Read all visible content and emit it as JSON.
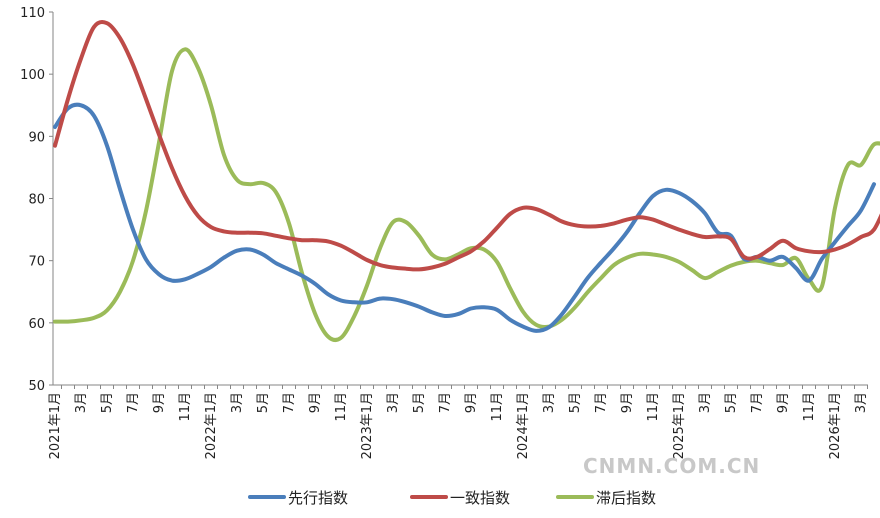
{
  "chart_data": {
    "type": "line",
    "title": "",
    "xlabel": "",
    "ylabel": "",
    "ylim": [
      50,
      110
    ],
    "yticks": [
      50,
      60,
      70,
      80,
      90,
      100,
      110
    ],
    "grid": false,
    "legend_position": "bottom",
    "x_tick_labels": [
      "2021年1月",
      "3月",
      "5月",
      "7月",
      "9月",
      "11月",
      "2022年1月",
      "3月",
      "5月",
      "7月",
      "9月",
      "11月",
      "2023年1月",
      "3月",
      "5月",
      "7月",
      "9月",
      "11月",
      "2024年1月",
      "3月",
      "5月",
      "7月",
      "9月",
      "11月",
      "2025年1月",
      "3月",
      "5月",
      "7月",
      "9月",
      "11月",
      "2026年1月",
      "3月"
    ],
    "series": [
      {
        "name": "先行指数",
        "color": "#4a7ebb",
        "values": [
          91.5,
          94.5,
          95.0,
          93.3,
          88.5,
          81.5,
          75.0,
          70.2,
          67.8,
          66.8,
          67.0,
          67.9,
          69.0,
          70.5,
          71.6,
          71.8,
          71.0,
          69.6,
          68.6,
          67.6,
          66.3,
          64.6,
          63.6,
          63.3,
          63.3,
          63.9,
          63.8,
          63.3,
          62.6,
          61.7,
          61.1,
          61.4,
          62.3,
          62.5,
          62.1,
          60.5,
          59.4,
          58.7,
          59.3,
          61.4,
          64.3,
          67.3,
          69.7,
          72.0,
          74.6,
          77.7,
          80.4,
          81.4,
          80.9,
          79.6,
          77.6,
          74.5,
          74.0,
          70.3,
          70.6,
          70.0,
          70.6,
          68.8,
          66.8,
          70.3,
          73.0,
          75.6,
          78.1,
          82.3
        ]
      },
      {
        "name": "一致指数",
        "color": "#be4b48",
        "values": [
          88.5,
          96.0,
          102.5,
          107.6,
          108.2,
          105.8,
          101.5,
          96.0,
          90.3,
          84.9,
          80.4,
          77.2,
          75.4,
          74.7,
          74.5,
          74.5,
          74.4,
          74.0,
          73.6,
          73.3,
          73.3,
          73.1,
          72.4,
          71.3,
          70.1,
          69.3,
          68.9,
          68.7,
          68.6,
          68.9,
          69.5,
          70.5,
          71.5,
          73.1,
          75.3,
          77.5,
          78.5,
          78.3,
          77.4,
          76.3,
          75.7,
          75.5,
          75.6,
          76.0,
          76.6,
          77.0,
          76.6,
          75.8,
          75.0,
          74.3,
          73.8,
          73.9,
          73.5,
          70.6,
          70.6,
          71.9,
          73.2,
          72.0,
          71.5,
          71.4,
          71.8,
          72.6,
          73.8,
          75.0,
          79.4
        ]
      },
      {
        "name": "滞后指数",
        "color": "#9bbb59",
        "values": [
          60.2,
          60.2,
          60.4,
          60.8,
          62.0,
          65.0,
          70.0,
          78.0,
          89.0,
          100.5,
          104.0,
          101.0,
          95.0,
          87.0,
          83.0,
          82.3,
          82.5,
          81.0,
          76.0,
          68.0,
          61.5,
          57.8,
          57.6,
          61.0,
          66.0,
          72.0,
          76.2,
          76.2,
          74.0,
          71.0,
          70.2,
          71.0,
          72.0,
          71.8,
          69.8,
          65.6,
          61.8,
          59.7,
          59.4,
          60.5,
          62.5,
          65.0,
          67.2,
          69.3,
          70.5,
          71.1,
          71.0,
          70.6,
          69.8,
          68.5,
          67.2,
          68.2,
          69.2,
          69.8,
          70.0,
          69.6,
          69.3,
          70.4,
          67.0,
          65.9,
          78.5,
          85.4,
          85.4,
          88.7,
          88.5
        ]
      }
    ]
  },
  "watermark": "CNMN.COM.CN"
}
